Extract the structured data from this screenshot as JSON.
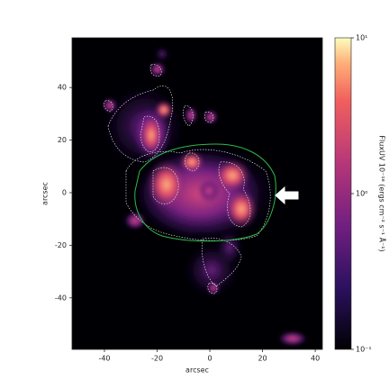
{
  "chart_data": {
    "type": "image",
    "xlabel": "arcsec",
    "ylabel": "arcsec",
    "xlim": [
      -52.3,
      42.7
    ],
    "ylim": [
      -59.6,
      58.9
    ],
    "xticks": [
      -40,
      -20,
      0,
      20,
      40
    ],
    "yticks": [
      -40,
      -20,
      0,
      20,
      40
    ],
    "colorbar": {
      "label": "FluxUV 10⁻¹⁸ (ergs cm⁻² s⁻¹ Å⁻¹)",
      "scale": "log",
      "clim": [
        0.1,
        10
      ],
      "ticks": [
        {
          "value": 0.1,
          "label": "10⁻¹"
        },
        {
          "value": 1,
          "label": "10⁰"
        },
        {
          "value": 10,
          "label": "10¹"
        }
      ]
    }
  }
}
